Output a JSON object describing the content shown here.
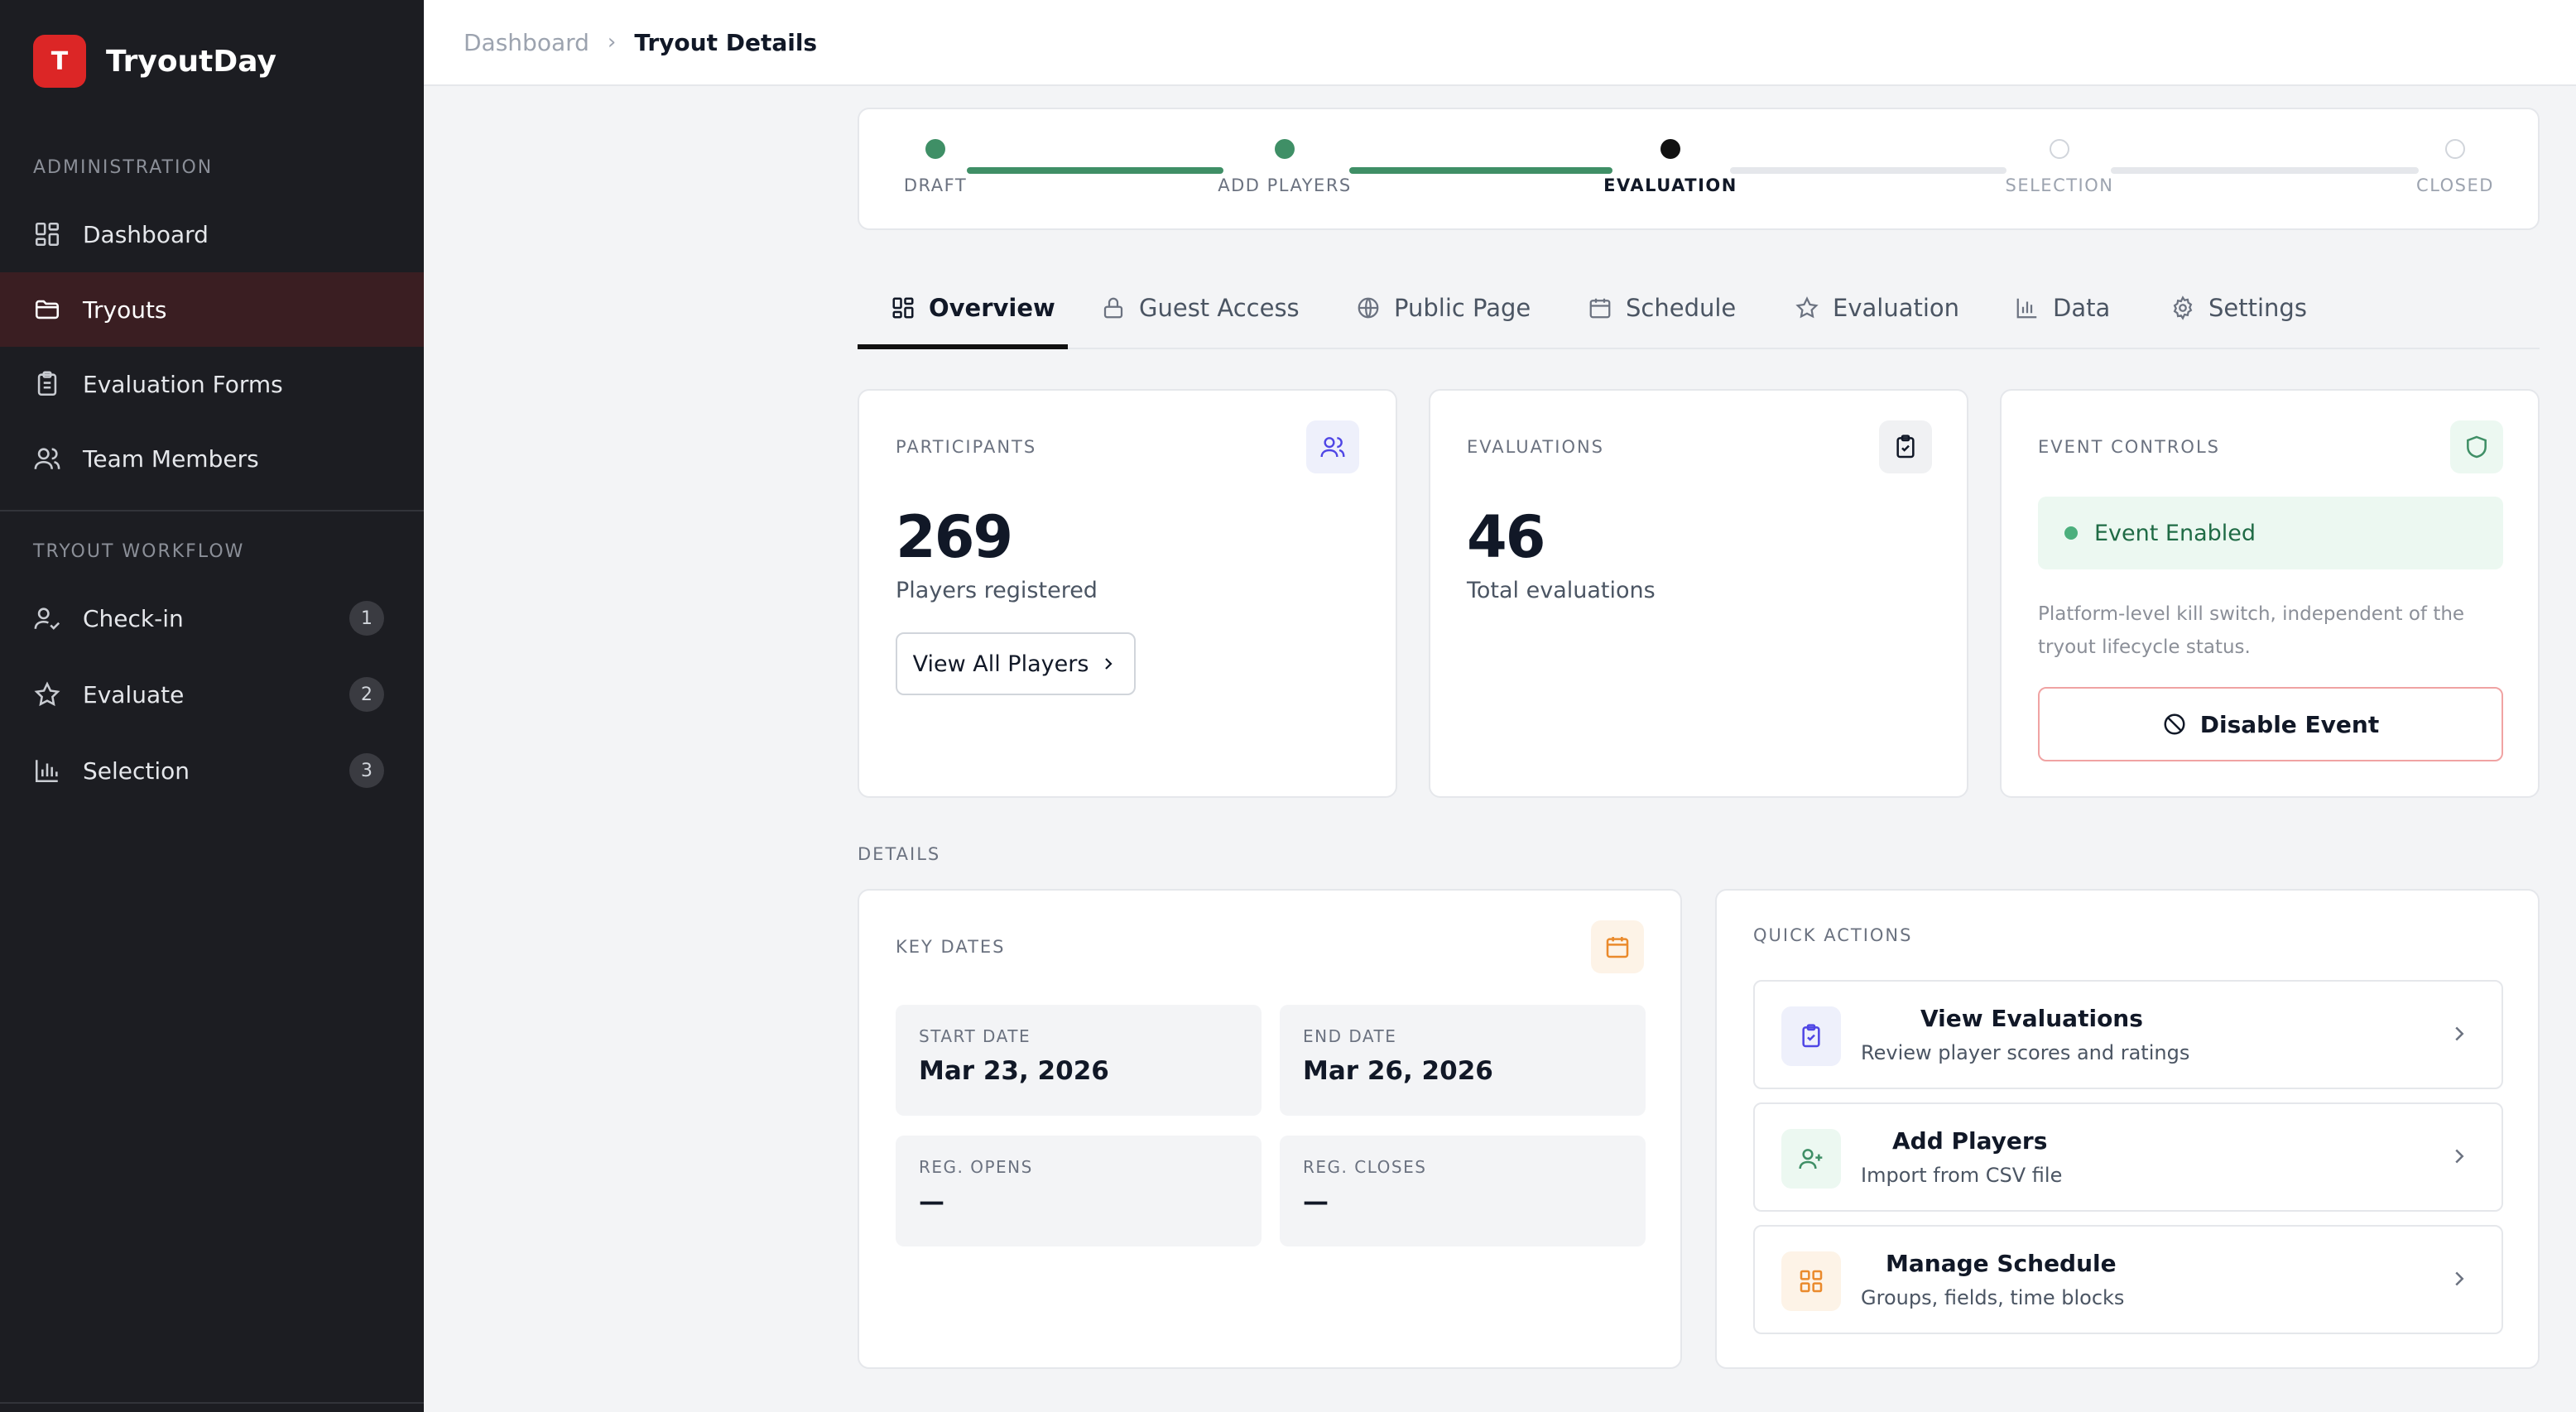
{
  "app": {
    "logo_letter": "T",
    "name": "TryoutDay"
  },
  "sidebar": {
    "admin_label": "ADMINISTRATION",
    "admin_items": [
      {
        "label": "Dashboard",
        "icon": "dashboard-icon"
      },
      {
        "label": "Tryouts",
        "icon": "folder-icon",
        "active": true
      },
      {
        "label": "Evaluation Forms",
        "icon": "clipboard-icon"
      },
      {
        "label": "Team Members",
        "icon": "users-icon"
      }
    ],
    "workflow_label": "TRYOUT WORKFLOW",
    "workflow_items": [
      {
        "label": "Check-in",
        "icon": "user-check-icon",
        "badge": "1"
      },
      {
        "label": "Evaluate",
        "icon": "star-icon",
        "badge": "2"
      },
      {
        "label": "Selection",
        "icon": "bar-chart-icon",
        "badge": "3"
      }
    ]
  },
  "breadcrumb": {
    "parent": "Dashboard",
    "separator": "›",
    "current": "Tryout Details"
  },
  "stepper": {
    "steps": [
      "DRAFT",
      "ADD PLAYERS",
      "EVALUATION",
      "SELECTION",
      "CLOSED"
    ],
    "current_index": 2
  },
  "tabs": [
    "Overview",
    "Guest Access",
    "Public Page",
    "Schedule",
    "Evaluation",
    "Data",
    "Settings"
  ],
  "participants": {
    "label": "PARTICIPANTS",
    "count": "269",
    "caption": "Players registered",
    "button": "View All Players"
  },
  "evaluations": {
    "label": "EVALUATIONS",
    "count": "46",
    "caption": "Total evaluations"
  },
  "event_controls": {
    "label": "EVENT CONTROLS",
    "status": "Event Enabled",
    "description": "Platform-level kill switch, independent of the tryout lifecycle status.",
    "button": "Disable Event"
  },
  "details_label": "DETAILS",
  "key_dates": {
    "label": "KEY DATES",
    "start_label": "START DATE",
    "start_value": "Mar 23, 2026",
    "end_label": "END DATE",
    "end_value": "Mar 26, 2026",
    "reg_opens_label": "REG. OPENS",
    "reg_opens_value": "—",
    "reg_closes_label": "REG. CLOSES",
    "reg_closes_value": "—"
  },
  "quick_actions": {
    "label": "QUICK ACTIONS",
    "items": [
      {
        "title": "View Evaluations",
        "subtitle": "Review player scores and ratings",
        "icon": "clipboard-check-icon",
        "color": "#4f46e5"
      },
      {
        "title": "Add Players",
        "subtitle": "Import from CSV file",
        "icon": "user-plus-icon",
        "color": "#3f8f66"
      },
      {
        "title": "Manage Schedule",
        "subtitle": "Groups, fields, time blocks",
        "icon": "grid-icon",
        "color": "#ea8a2c"
      }
    ]
  },
  "colors": {
    "brand": "#dc2626",
    "success": "#3f8f66",
    "sidebar_bg": "#1c1d22"
  }
}
